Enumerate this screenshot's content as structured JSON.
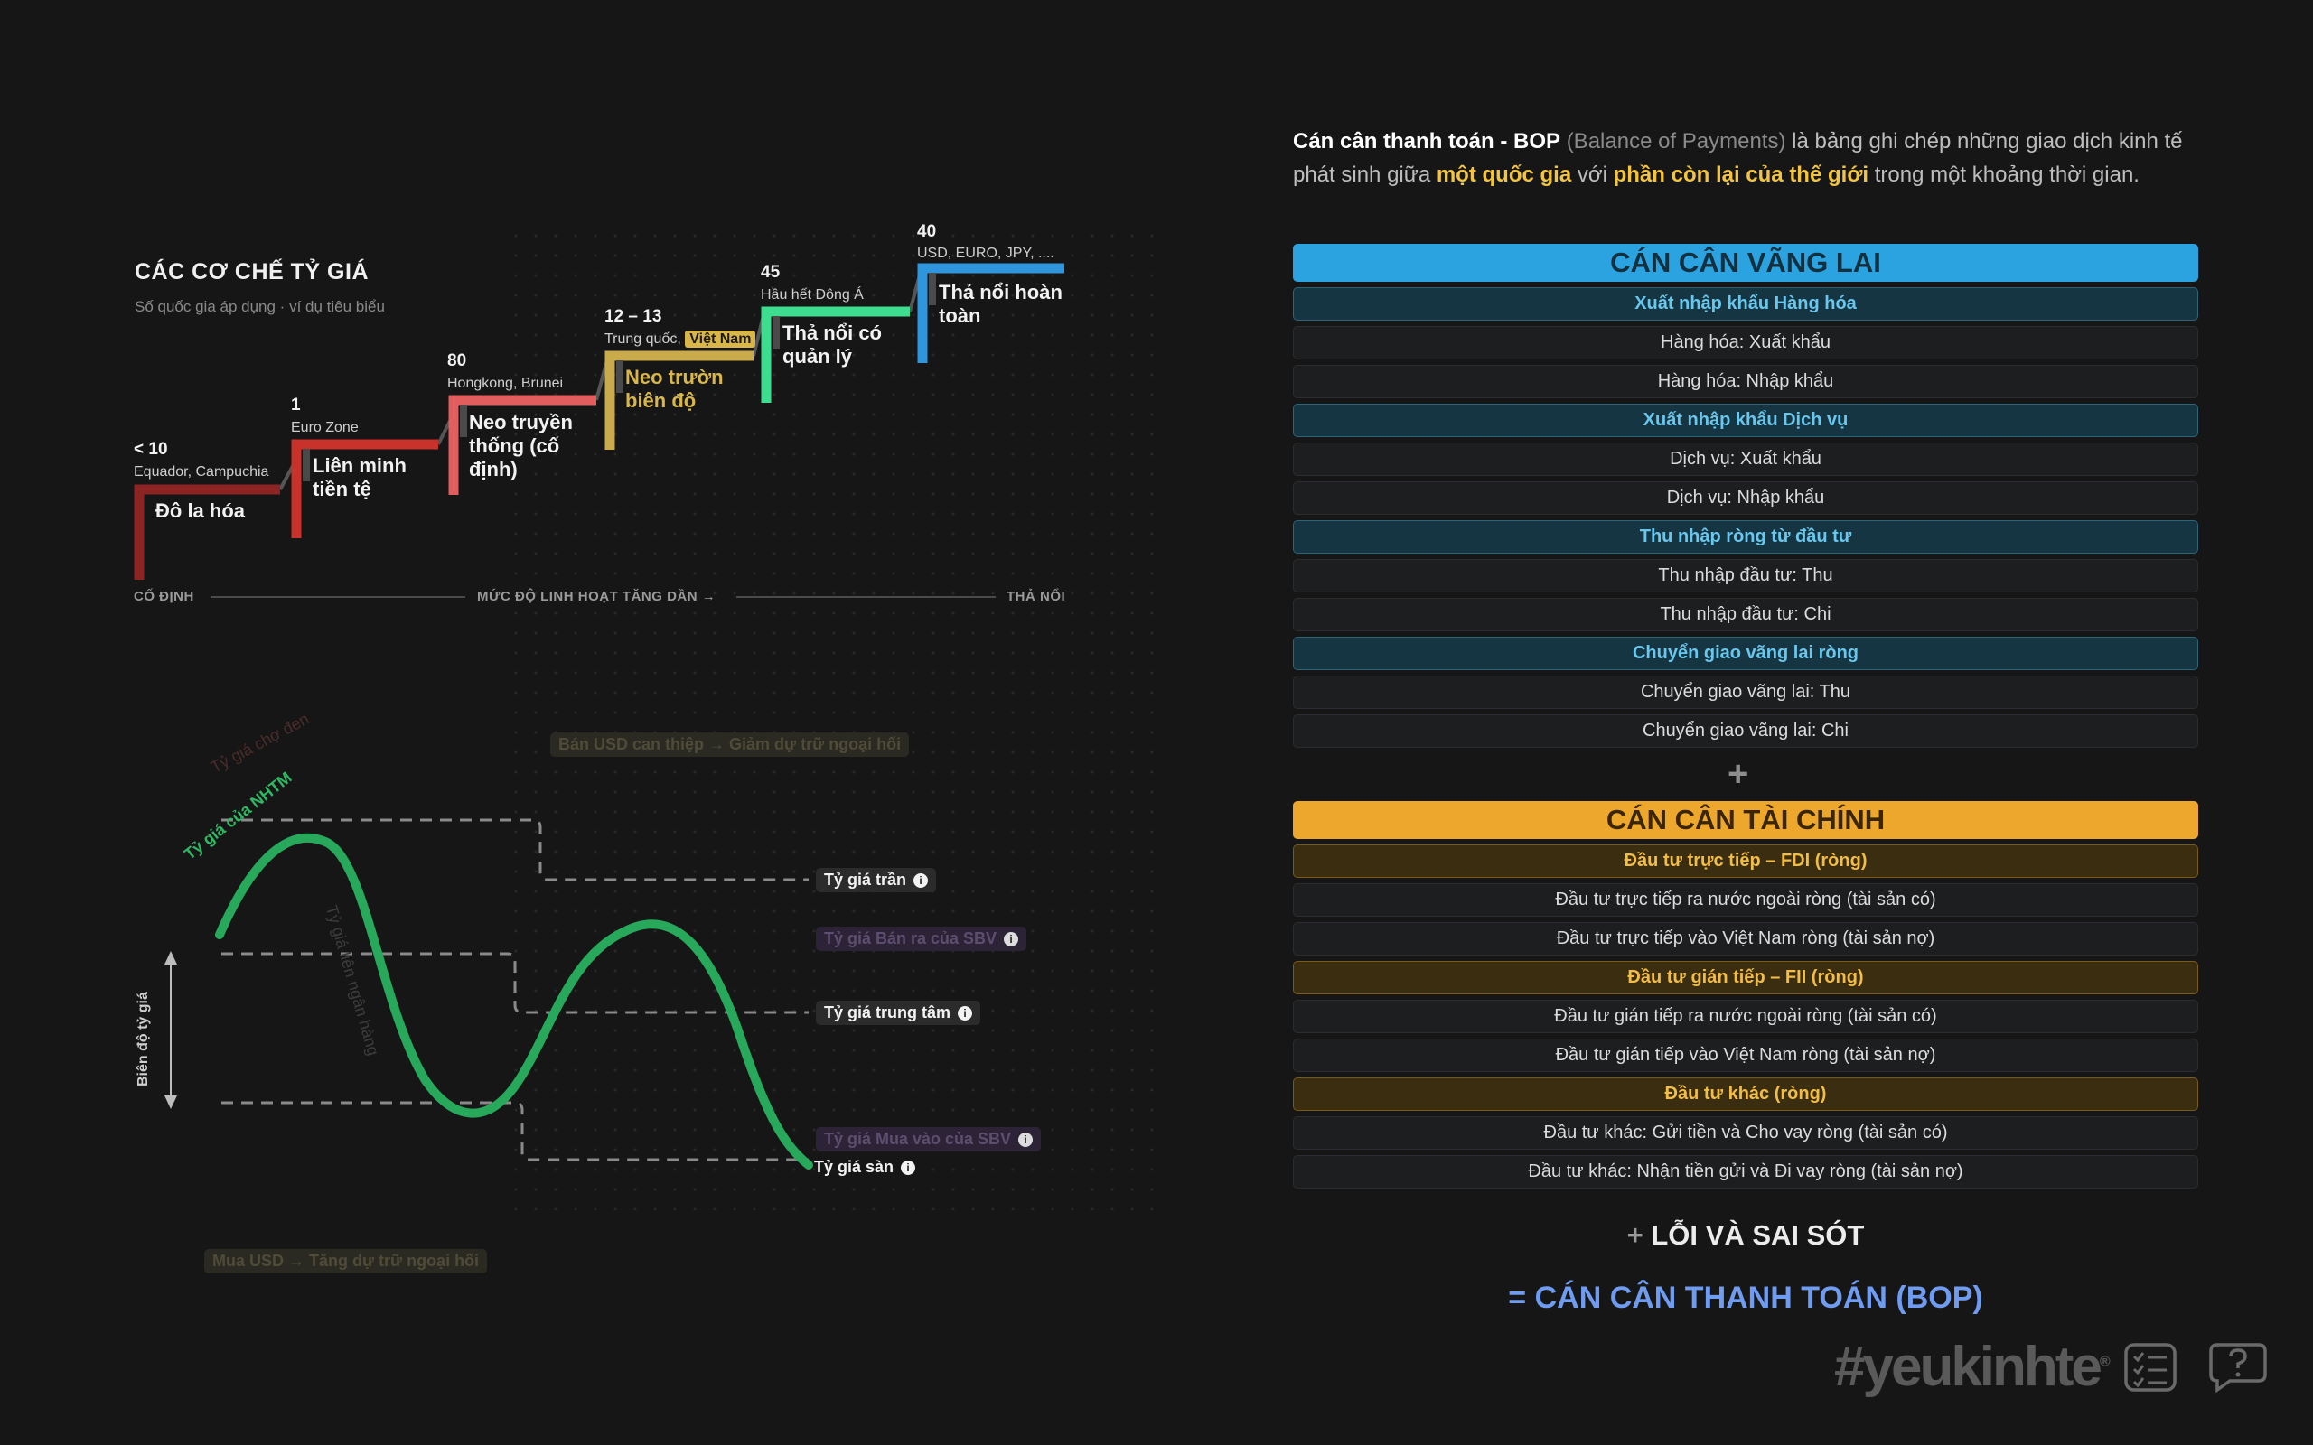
{
  "regimes": {
    "title": "CÁC CƠ CHẾ TỶ GIÁ",
    "subtitle": "Số quốc gia áp dụng · ví dụ tiêu biểu",
    "steps": [
      {
        "count": "< 10",
        "examples": "Equador, Campuchia",
        "name": "Đô la hóa",
        "color": "#8c2424"
      },
      {
        "count": "1",
        "examples": "Euro Zone",
        "name": "Liên minh tiền tệ",
        "color": "#c8322b"
      },
      {
        "count": "80",
        "examples": "Hongkong, Brunei",
        "name": "Neo truyền thống (cố định)",
        "color": "#e05e5e"
      },
      {
        "count": "12 – 13",
        "examples": "Trung quốc,",
        "highlight": "Việt Nam",
        "name": "Neo trườn biên độ",
        "color": "#c9ab4b"
      },
      {
        "count": "45",
        "examples": "Hầu hết Đông Á",
        "name": "Thả nổi có quản lý",
        "color": "#3ddc8e"
      },
      {
        "count": "40",
        "examples": "USD, EURO, JPY, ....",
        "name": "Thả nổi hoàn toàn",
        "color": "#2f95dc"
      }
    ],
    "axis": {
      "left": "CỐ ĐỊNH",
      "middle": "MỨC ĐỘ LINH HOẠT TĂNG DẦN →",
      "right": "THẢ NỔI"
    }
  },
  "exchange_chart": {
    "curve_label": "Tỷ giá của NHTM",
    "faint_label": "Tỷ giá chợ đen",
    "faint_curve_label": "Tỷ giá liên ngân hàng",
    "band_label": "Biên độ tỷ giá",
    "levels": {
      "ceiling": "Tỷ giá trần",
      "sbv_sell": "Tỷ giá Bán ra của SBV",
      "central": "Tỷ giá trung tâm",
      "sbv_buy": "Tỷ giá Mua vào của SBV",
      "floor": "Tỷ giá sàn"
    },
    "info_glyph": "i",
    "sell_note": "Bán USD can thiệp → Giảm dự trữ ngoại hối",
    "buy_note": "Mua USD → Tăng dự trữ ngoại hối",
    "colors": {
      "curve": "#27a85a",
      "dashes": "#8a8a8a"
    }
  },
  "bop": {
    "intro": {
      "term": "Cán cân thanh toán - BOP",
      "english": "(Balance of Payments)",
      "text1": "là bảng ghi chép những giao dịch kinh tế phát sinh giữa",
      "hl1": "một quốc gia",
      "text2": "với",
      "hl2": "phần còn lại của thế giới",
      "text3": "trong một khoảng thời gian."
    },
    "current_account": {
      "title": "CÁN CÂN VÃNG LAI",
      "groups": [
        {
          "label": "Xuất nhập khẩu Hàng hóa",
          "items": [
            "Hàng hóa: Xuất khẩu",
            "Hàng hóa: Nhập khẩu"
          ]
        },
        {
          "label": "Xuất nhập khẩu Dịch vụ",
          "items": [
            "Dịch vụ: Xuất khẩu",
            "Dịch vụ: Nhập khẩu"
          ]
        },
        {
          "label": "Thu nhập ròng từ đầu tư",
          "items": [
            "Thu nhập đầu tư: Thu",
            "Thu nhập đầu tư: Chi"
          ]
        },
        {
          "label": "Chuyển giao vãng lai ròng",
          "items": [
            "Chuyển giao vãng lai: Thu",
            "Chuyển giao vãng lai: Chi"
          ]
        }
      ]
    },
    "plus": "+",
    "financial_account": {
      "title": "CÁN CÂN TÀI CHÍNH",
      "groups": [
        {
          "label": "Đầu tư trực tiếp – FDI (ròng)",
          "items": [
            "Đầu tư trực tiếp ra nước ngoài ròng (tài sản có)",
            "Đầu tư trực tiếp vào Việt Nam ròng (tài sản nợ)"
          ]
        },
        {
          "label": "Đầu tư gián tiếp – FII (ròng)",
          "items": [
            "Đầu tư gián tiếp ra nước ngoài ròng (tài sản có)",
            "Đầu tư gián tiếp vào Việt Nam ròng (tài sản nợ)"
          ]
        },
        {
          "label": "Đầu tư khác (ròng)",
          "items": [
            "Đầu tư khác: Gửi tiền và Cho vay ròng (tài sản có)",
            "Đầu tư khác: Nhận tiền gửi và Đi vay ròng (tài sản nợ)"
          ]
        }
      ]
    },
    "errors": {
      "plus": "+",
      "label": "LỖI VÀ SAI SÓT"
    },
    "total": "= CÁN CÂN THANH TOÁN (BOP)"
  },
  "footer": {
    "brand": "#yeukinhte",
    "brand_mark": "®",
    "icons": [
      "checklist-icon",
      "help-icon"
    ]
  }
}
